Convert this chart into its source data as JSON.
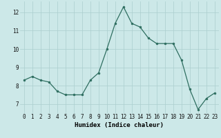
{
  "x": [
    0,
    1,
    2,
    3,
    4,
    5,
    6,
    7,
    8,
    9,
    10,
    11,
    12,
    13,
    14,
    15,
    16,
    17,
    18,
    19,
    20,
    21,
    22,
    23
  ],
  "y": [
    8.3,
    8.5,
    8.3,
    8.2,
    7.7,
    7.5,
    7.5,
    7.5,
    8.3,
    8.7,
    10.0,
    11.4,
    12.3,
    11.4,
    11.2,
    10.6,
    10.3,
    10.3,
    10.3,
    9.4,
    7.8,
    6.7,
    7.3,
    7.6
  ],
  "line_color": "#2e6e60",
  "marker": "o",
  "marker_size": 2.0,
  "background_color": "#cce8e8",
  "grid_color": "#aacece",
  "xlabel": "Humidex (Indice chaleur)",
  "xlim": [
    -0.5,
    23.5
  ],
  "ylim": [
    6.5,
    12.6
  ],
  "yticks": [
    7,
    8,
    9,
    10,
    11,
    12
  ],
  "xticks": [
    0,
    1,
    2,
    3,
    4,
    5,
    6,
    7,
    8,
    9,
    10,
    11,
    12,
    13,
    14,
    15,
    16,
    17,
    18,
    19,
    20,
    21,
    22,
    23
  ],
  "tick_fontsize": 5.5,
  "xlabel_fontsize": 6.5
}
